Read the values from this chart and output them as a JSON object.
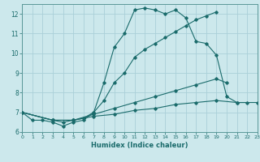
{
  "xlabel": "Humidex (Indice chaleur)",
  "bg_color": "#cce8ec",
  "grid_color": "#aad0d8",
  "line_color": "#1a6b6b",
  "spine_color": "#5a9898",
  "xlim": [
    0,
    23
  ],
  "ylim": [
    6,
    12.5
  ],
  "xticks": [
    0,
    1,
    2,
    3,
    4,
    5,
    6,
    7,
    8,
    9,
    10,
    11,
    12,
    13,
    14,
    15,
    16,
    17,
    18,
    19,
    20,
    21,
    22,
    23
  ],
  "yticks": [
    6,
    7,
    8,
    9,
    10,
    11,
    12
  ],
  "lines": [
    {
      "x": [
        0,
        1,
        2,
        3,
        4,
        5,
        6,
        7,
        8,
        9,
        10,
        11,
        12,
        13,
        14,
        15,
        16,
        17,
        18,
        19,
        20,
        21,
        22
      ],
      "y": [
        7.0,
        6.6,
        6.6,
        6.5,
        6.3,
        6.5,
        6.6,
        7.0,
        8.5,
        10.3,
        11.0,
        12.2,
        12.3,
        12.2,
        12.0,
        12.2,
        11.8,
        10.6,
        10.5,
        9.9,
        7.8,
        7.5,
        7.5
      ]
    },
    {
      "x": [
        0,
        3,
        4,
        5,
        6,
        7,
        8,
        9,
        10,
        11,
        12,
        13,
        14,
        15,
        16,
        17,
        18,
        19
      ],
      "y": [
        7.0,
        6.6,
        6.5,
        6.6,
        6.7,
        7.0,
        7.6,
        8.5,
        9.0,
        9.8,
        10.2,
        10.5,
        10.8,
        11.1,
        11.4,
        11.7,
        11.9,
        12.1
      ]
    },
    {
      "x": [
        0,
        3,
        5,
        7,
        9,
        11,
        13,
        15,
        17,
        19,
        20
      ],
      "y": [
        7.0,
        6.6,
        6.6,
        6.9,
        7.2,
        7.5,
        7.8,
        8.1,
        8.4,
        8.7,
        8.5
      ]
    },
    {
      "x": [
        0,
        3,
        5,
        7,
        9,
        11,
        13,
        15,
        17,
        19,
        21,
        23
      ],
      "y": [
        7.0,
        6.6,
        6.6,
        6.8,
        6.9,
        7.1,
        7.2,
        7.4,
        7.5,
        7.6,
        7.5,
        7.5
      ]
    }
  ]
}
